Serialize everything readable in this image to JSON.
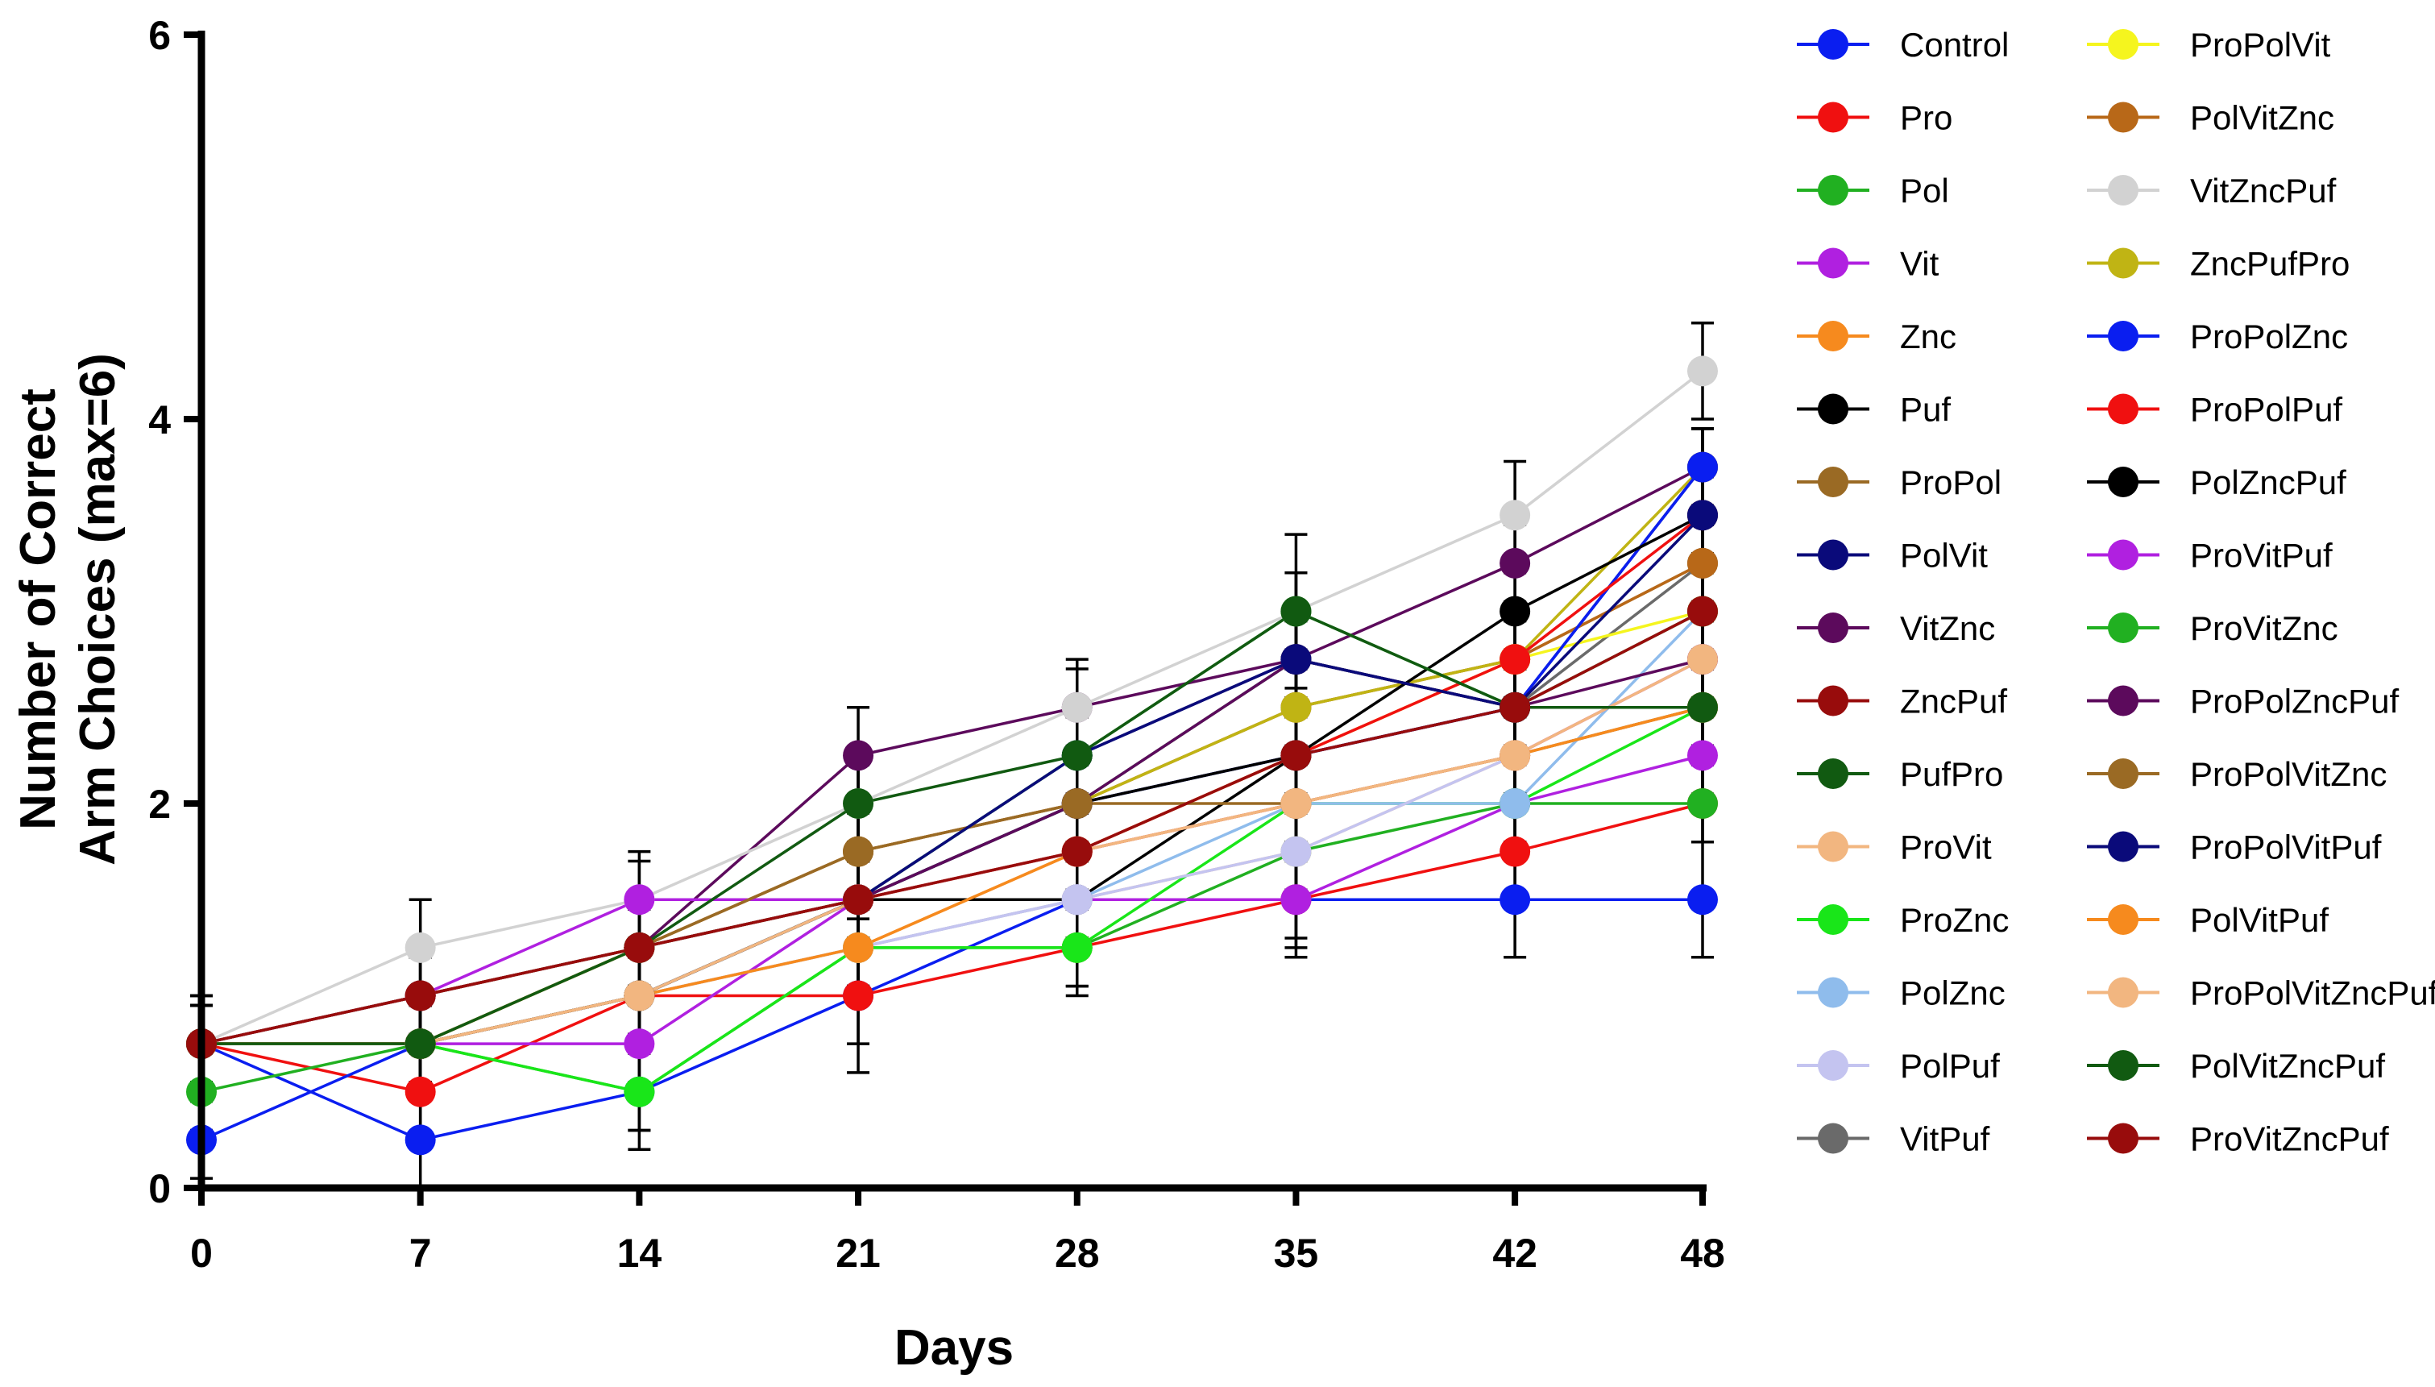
{
  "chart_data": {
    "type": "line",
    "title": "",
    "xlabel": "Days",
    "ylabel_line1": "Number of Correct",
    "ylabel_line2": "Arm Choices (max=6)",
    "x": [
      0,
      7,
      14,
      21,
      28,
      35,
      42,
      48
    ],
    "x_tick_labels": [
      "0",
      "7",
      "14",
      "21",
      "28",
      "35",
      "42",
      "48"
    ],
    "ylim": [
      0,
      6
    ],
    "y_ticks": [
      0,
      2,
      4,
      6
    ],
    "y_tick_labels": [
      "0",
      "2",
      "4",
      "6"
    ],
    "legend_position": "right",
    "series": [
      {
        "name": "Control",
        "color": "#0a1ef0",
        "values": [
          0.75,
          0.25,
          0.5,
          1.0,
          1.5,
          1.5,
          1.5,
          1.5
        ],
        "errors": [
          0.25,
          0.25,
          0.3,
          0.4,
          0.25,
          0.3,
          0.3,
          0.3
        ]
      },
      {
        "name": "Pro",
        "color": "#f01010",
        "values": [
          0.75,
          0.5,
          1.0,
          1.0,
          1.25,
          1.5,
          1.75,
          2.0
        ],
        "errors": [
          0.25,
          0.25,
          0.25,
          0.25,
          0.25,
          0.25,
          0.25,
          0.2
        ]
      },
      {
        "name": "Pol",
        "color": "#21b021",
        "values": [
          0.5,
          0.75,
          0.5,
          1.25,
          1.25,
          1.75,
          2.0,
          2.0
        ],
        "errors": [
          0.2,
          0.2,
          0.2,
          0.2,
          0.2,
          0.2,
          0.2,
          0.2
        ]
      },
      {
        "name": "Vit",
        "color": "#b020e0",
        "values": [
          0.75,
          0.75,
          0.75,
          1.5,
          1.5,
          1.5,
          2.0,
          2.25
        ],
        "errors": [
          0.2,
          0.2,
          0.2,
          0.2,
          0.2,
          0.2,
          0.2,
          0.2
        ]
      },
      {
        "name": "Znc",
        "color": "#f68a1e",
        "values": [
          0.75,
          0.75,
          1.0,
          1.25,
          1.75,
          2.0,
          2.25,
          2.5
        ],
        "errors": [
          0.2,
          0.2,
          0.2,
          0.2,
          0.2,
          0.2,
          0.2,
          0.2
        ]
      },
      {
        "name": "Puf",
        "color": "#000000",
        "values": [
          0.75,
          0.75,
          1.0,
          1.5,
          1.5,
          2.25,
          2.5,
          2.5
        ],
        "errors": [
          0.2,
          0.2,
          0.2,
          0.2,
          0.2,
          0.2,
          0.2,
          0.2
        ]
      },
      {
        "name": "ProPol",
        "color": "#9a6a24",
        "values": [
          0.75,
          1.0,
          1.25,
          1.75,
          2.0,
          2.5,
          2.75,
          3.25
        ],
        "errors": [
          0.2,
          0.2,
          0.2,
          0.2,
          0.2,
          0.2,
          0.2,
          0.2
        ]
      },
      {
        "name": "PolVit",
        "color": "#0a0a7a",
        "values": [
          0.75,
          0.75,
          1.0,
          1.5,
          2.25,
          2.75,
          2.5,
          3.75
        ],
        "errors": [
          0.2,
          0.2,
          0.2,
          0.2,
          0.2,
          0.2,
          0.2,
          0.2
        ]
      },
      {
        "name": "VitZnc",
        "color": "#5c0a5c",
        "values": [
          0.75,
          1.0,
          1.25,
          2.25,
          2.5,
          2.75,
          3.25,
          3.75
        ],
        "errors": [
          0.2,
          0.2,
          0.2,
          0.25,
          0.2,
          0.2,
          0.2,
          0.2
        ]
      },
      {
        "name": "ZncPuf",
        "color": "#980c0c",
        "values": [
          0.75,
          0.75,
          1.25,
          1.5,
          1.75,
          2.25,
          2.5,
          3.0
        ],
        "errors": [
          0.2,
          0.2,
          0.2,
          0.2,
          0.2,
          0.2,
          0.2,
          0.2
        ]
      },
      {
        "name": "PufPro",
        "color": "#115a11",
        "values": [
          0.75,
          0.75,
          1.25,
          1.5,
          2.0,
          2.75,
          2.5,
          2.5
        ],
        "errors": [
          0.2,
          0.2,
          0.2,
          0.2,
          0.2,
          0.2,
          0.2,
          0.2
        ]
      },
      {
        "name": "ProVit",
        "color": "#f2b680",
        "values": [
          0.75,
          0.75,
          1.0,
          1.25,
          1.5,
          1.75,
          2.25,
          2.75
        ],
        "errors": [
          0.2,
          0.2,
          0.2,
          0.2,
          0.2,
          0.2,
          0.2,
          0.2
        ]
      },
      {
        "name": "ProZnc",
        "color": "#19e619",
        "values": [
          0.75,
          0.75,
          0.5,
          1.25,
          1.25,
          2.0,
          2.0,
          2.5
        ],
        "errors": [
          0.2,
          0.2,
          0.2,
          0.2,
          0.2,
          0.2,
          0.2,
          0.2
        ]
      },
      {
        "name": "PolZnc",
        "color": "#8fbcec",
        "values": [
          0.75,
          0.75,
          1.0,
          1.25,
          1.5,
          2.0,
          2.0,
          3.0
        ],
        "errors": [
          0.2,
          0.2,
          0.2,
          0.2,
          0.2,
          0.2,
          0.2,
          0.2
        ]
      },
      {
        "name": "PolPuf",
        "color": "#c4c4f0",
        "values": [
          0.75,
          0.75,
          1.0,
          1.25,
          1.5,
          1.75,
          2.25,
          2.5
        ],
        "errors": [
          0.2,
          0.2,
          0.2,
          0.2,
          0.2,
          0.2,
          0.2,
          0.2
        ]
      },
      {
        "name": "VitPuf",
        "color": "#6a6a6a",
        "values": [
          0.75,
          0.75,
          1.0,
          1.5,
          2.0,
          2.25,
          2.5,
          3.25
        ],
        "errors": [
          0.2,
          0.2,
          0.2,
          0.2,
          0.2,
          0.2,
          0.2,
          0.2
        ]
      },
      {
        "name": "ProPolVit",
        "color": "#f5f51e",
        "values": [
          0.75,
          0.75,
          1.0,
          1.5,
          1.75,
          2.25,
          2.75,
          3.0
        ],
        "errors": [
          0.2,
          0.2,
          0.2,
          0.2,
          0.2,
          0.2,
          0.2,
          0.2
        ]
      },
      {
        "name": "PolVitZnc",
        "color": "#b86818",
        "values": [
          0.75,
          0.75,
          1.25,
          1.75,
          2.0,
          2.5,
          2.75,
          3.25
        ],
        "errors": [
          0.2,
          0.2,
          0.2,
          0.2,
          0.2,
          0.2,
          0.2,
          0.2
        ]
      },
      {
        "name": "VitZncPuf",
        "color": "#d2d2d2",
        "values": [
          0.75,
          1.25,
          1.5,
          2.0,
          2.5,
          3.0,
          3.5,
          4.25
        ],
        "errors": [
          0.25,
          0.25,
          0.25,
          0.25,
          0.25,
          0.4,
          0.28,
          0.25
        ]
      },
      {
        "name": "ZncPufPro",
        "color": "#c0b414",
        "values": [
          0.75,
          0.75,
          1.25,
          1.5,
          2.0,
          2.5,
          2.75,
          3.75
        ],
        "errors": [
          0.2,
          0.2,
          0.2,
          0.2,
          0.2,
          0.2,
          0.2,
          0.2
        ]
      },
      {
        "name": "ProPolZnc",
        "color": "#0a1ef0",
        "values": [
          0.25,
          0.75,
          1.0,
          1.5,
          2.0,
          2.25,
          2.5,
          3.75
        ],
        "errors": [
          0.2,
          0.2,
          0.2,
          0.2,
          0.2,
          0.2,
          0.2,
          0.2
        ]
      },
      {
        "name": "ProPolPuf",
        "color": "#f01010",
        "values": [
          0.75,
          0.75,
          1.0,
          1.5,
          1.75,
          2.25,
          2.75,
          3.5
        ],
        "errors": [
          0.2,
          0.2,
          0.2,
          0.2,
          0.2,
          0.2,
          0.2,
          0.2
        ]
      },
      {
        "name": "PolZncPuf",
        "color": "#000000",
        "values": [
          0.75,
          0.75,
          1.0,
          1.5,
          2.0,
          2.25,
          3.0,
          3.5
        ],
        "errors": [
          0.2,
          0.2,
          0.2,
          0.2,
          0.2,
          0.2,
          0.2,
          0.2
        ]
      },
      {
        "name": "ProVitPuf",
        "color": "#b020e0",
        "values": [
          0.75,
          1.0,
          1.5,
          1.5,
          1.75,
          2.0,
          2.25,
          2.75
        ],
        "errors": [
          0.2,
          0.2,
          0.2,
          0.2,
          0.2,
          0.2,
          0.2,
          0.2
        ]
      },
      {
        "name": "ProVitZnc",
        "color": "#21b021",
        "values": [
          0.75,
          0.75,
          1.0,
          1.5,
          2.25,
          3.0,
          2.5,
          3.0
        ],
        "errors": [
          0.2,
          0.2,
          0.2,
          0.2,
          0.2,
          0.2,
          0.2,
          0.2
        ]
      },
      {
        "name": "ProPolZncPuf",
        "color": "#5c0a5c",
        "values": [
          0.75,
          1.0,
          1.25,
          1.5,
          2.0,
          2.75,
          2.5,
          2.75
        ],
        "errors": [
          0.2,
          0.2,
          0.2,
          0.2,
          0.2,
          0.2,
          0.2,
          0.2
        ]
      },
      {
        "name": "ProPolVitZnc",
        "color": "#9a6a24",
        "values": [
          0.75,
          1.0,
          1.25,
          1.75,
          2.0,
          2.0,
          2.25,
          2.5
        ],
        "errors": [
          0.2,
          0.2,
          0.2,
          0.2,
          0.2,
          0.2,
          0.2,
          0.2
        ]
      },
      {
        "name": "ProPolVitPuf",
        "color": "#0a0a7a",
        "values": [
          0.75,
          0.75,
          1.0,
          1.5,
          2.25,
          2.75,
          2.5,
          3.5
        ],
        "errors": [
          0.2,
          0.2,
          0.2,
          0.2,
          0.2,
          0.2,
          0.2,
          0.2
        ]
      },
      {
        "name": "PolVitPuf",
        "color": "#f68a1e",
        "values": [
          0.75,
          0.75,
          1.0,
          1.25,
          1.75,
          2.0,
          2.25,
          2.5
        ],
        "errors": [
          0.2,
          0.2,
          0.2,
          0.2,
          0.2,
          0.2,
          0.2,
          0.2
        ]
      },
      {
        "name": "ProPolVitZncPuf",
        "color": "#f2b680",
        "values": [
          0.75,
          0.75,
          1.0,
          1.5,
          1.75,
          2.0,
          2.25,
          2.75
        ],
        "errors": [
          0.2,
          0.2,
          0.2,
          0.2,
          0.2,
          0.2,
          0.2,
          0.2
        ]
      },
      {
        "name": "PolVitZncPuf",
        "color": "#115a11",
        "values": [
          0.75,
          0.75,
          1.25,
          2.0,
          2.25,
          3.0,
          2.5,
          2.5
        ],
        "errors": [
          0.2,
          0.2,
          0.2,
          0.2,
          0.2,
          0.2,
          0.2,
          0.2
        ]
      },
      {
        "name": "ProVitZncPuf",
        "color": "#980c0c",
        "values": [
          0.75,
          1.0,
          1.25,
          1.5,
          1.75,
          2.25,
          2.5,
          3.0
        ],
        "errors": [
          0.2,
          0.2,
          0.2,
          0.2,
          0.2,
          0.2,
          0.2,
          0.2
        ]
      }
    ]
  }
}
